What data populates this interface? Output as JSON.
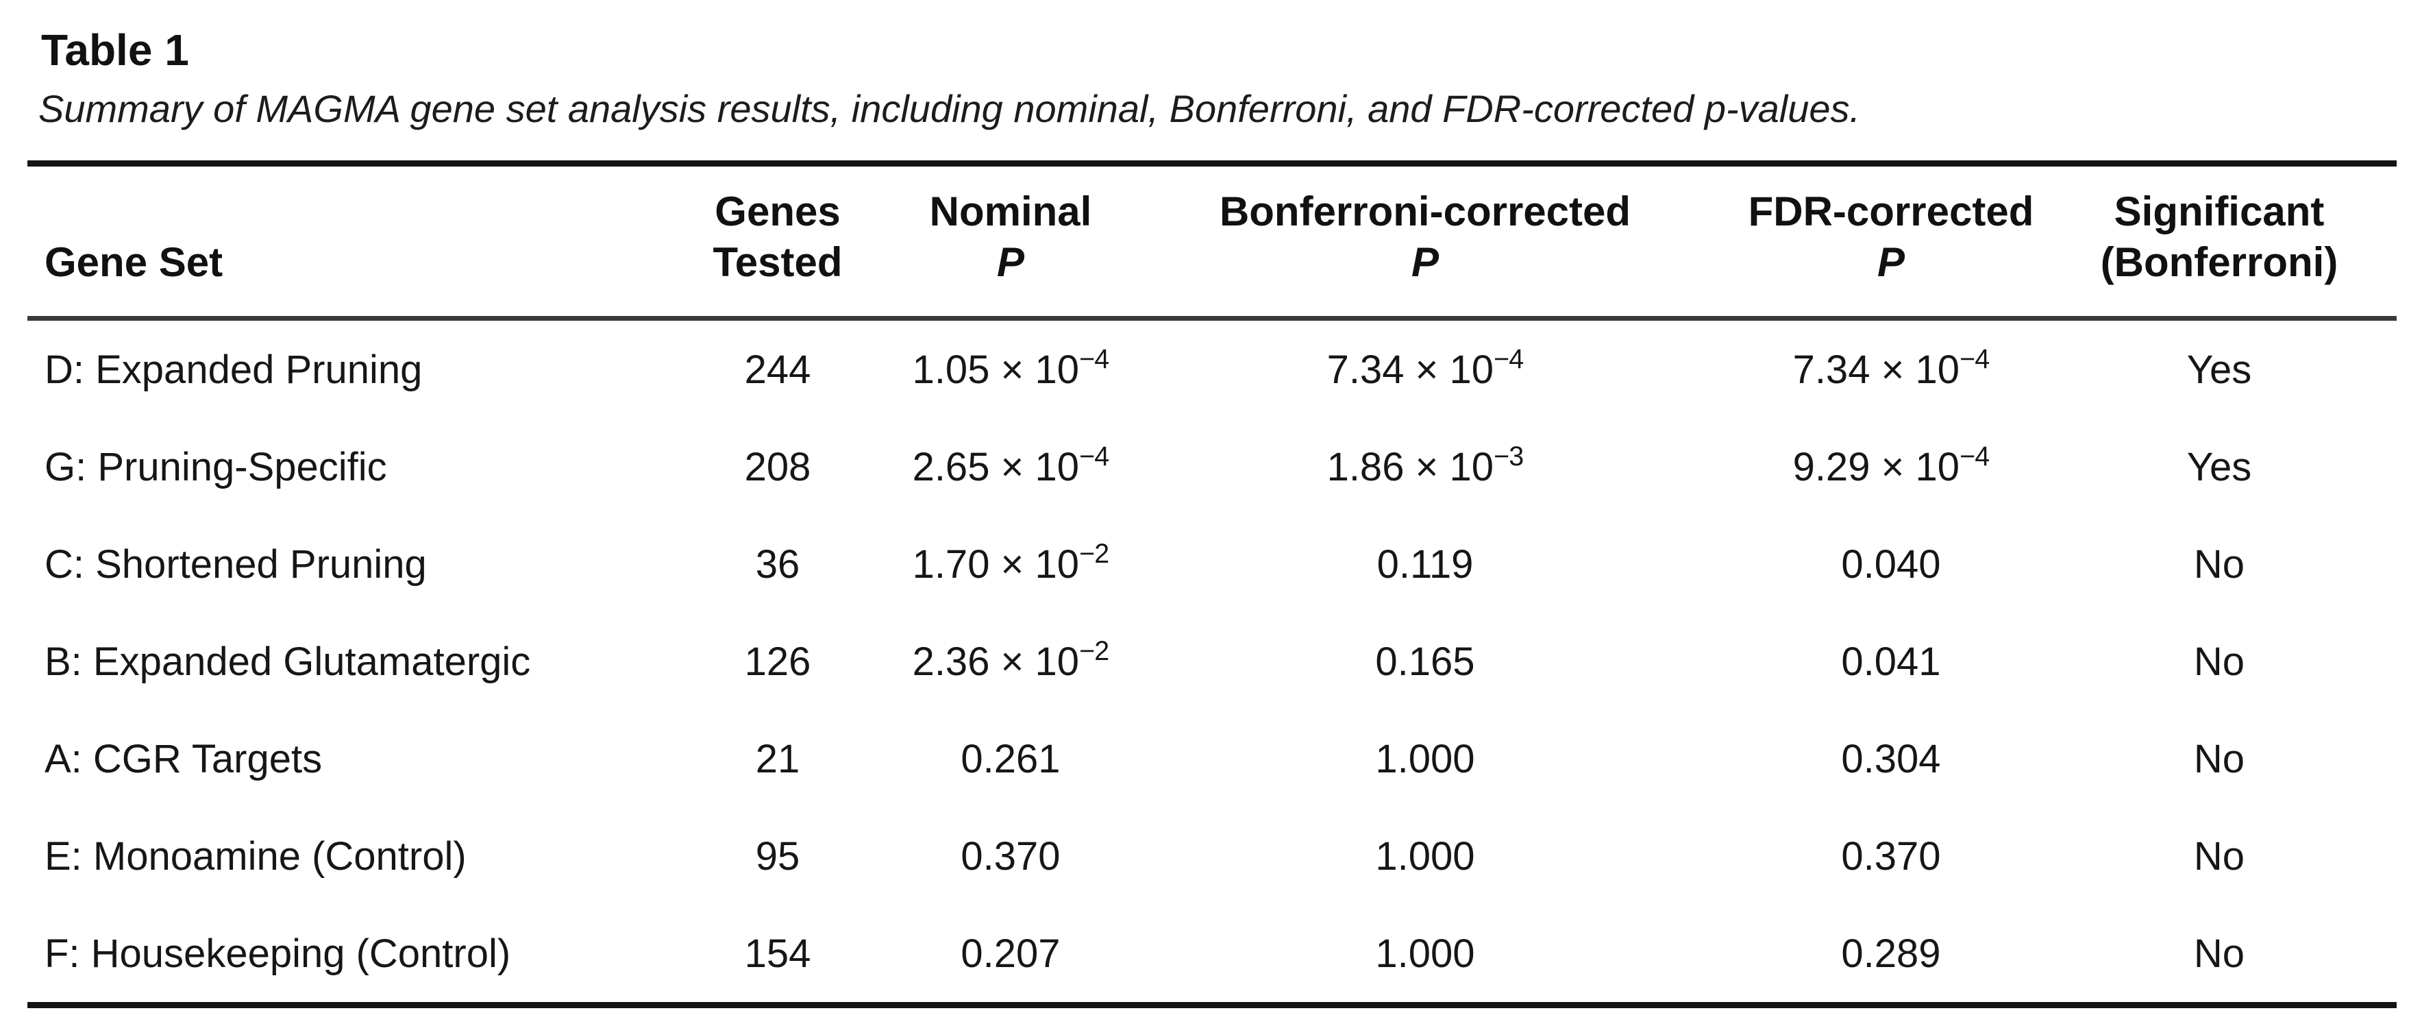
{
  "page": {
    "title": "Table 1",
    "caption": "Summary of MAGMA gene set analysis results, including nominal, Bonferroni, and FDR-corrected p-values."
  },
  "table": {
    "columns": [
      {
        "id": "gene_set",
        "line1": "",
        "line2": "Gene Set"
      },
      {
        "id": "genes_tested",
        "line1": "Genes",
        "line2": "Tested"
      },
      {
        "id": "nominal_p",
        "line1": "Nominal",
        "line2": "P"
      },
      {
        "id": "bonferroni_p",
        "line1": "Bonferroni-corrected",
        "line2": "P"
      },
      {
        "id": "fdr_p",
        "line1": "FDR-corrected",
        "line2": "P"
      },
      {
        "id": "significant",
        "line1": "Significant",
        "line2": "(Bonferroni)"
      }
    ],
    "rows": [
      {
        "gene_set": "D: Expanded Pruning",
        "genes_tested": "244",
        "nominal_p": {
          "mantissa": "1.05",
          "exponent": "−4"
        },
        "bonferroni_p": {
          "mantissa": "7.34",
          "exponent": "−4"
        },
        "fdr_p": {
          "mantissa": "7.34",
          "exponent": "−4"
        },
        "significant": "Yes"
      },
      {
        "gene_set": "G: Pruning-Specific",
        "genes_tested": "208",
        "nominal_p": {
          "mantissa": "2.65",
          "exponent": "−4"
        },
        "bonferroni_p": {
          "mantissa": "1.86",
          "exponent": "−3"
        },
        "fdr_p": {
          "mantissa": "9.29",
          "exponent": "−4"
        },
        "significant": "Yes"
      },
      {
        "gene_set": "C: Shortened Pruning",
        "genes_tested": "36",
        "nominal_p": {
          "mantissa": "1.70",
          "exponent": "−2"
        },
        "bonferroni_p": {
          "value": "0.119"
        },
        "fdr_p": {
          "value": "0.040"
        },
        "significant": "No"
      },
      {
        "gene_set": "B: Expanded Glutamatergic",
        "genes_tested": "126",
        "nominal_p": {
          "mantissa": "2.36",
          "exponent": "−2"
        },
        "bonferroni_p": {
          "value": "0.165"
        },
        "fdr_p": {
          "value": "0.041"
        },
        "significant": "No"
      },
      {
        "gene_set": "A: CGR Targets",
        "genes_tested": "21",
        "nominal_p": {
          "value": "0.261"
        },
        "bonferroni_p": {
          "value": "1.000"
        },
        "fdr_p": {
          "value": "0.304"
        },
        "significant": "No"
      },
      {
        "gene_set": "E: Monoamine (Control)",
        "genes_tested": "95",
        "nominal_p": {
          "value": "0.370"
        },
        "bonferroni_p": {
          "value": "1.000"
        },
        "fdr_p": {
          "value": "0.370"
        },
        "significant": "No"
      },
      {
        "gene_set": "F: Housekeeping (Control)",
        "genes_tested": "154",
        "nominal_p": {
          "value": "0.207"
        },
        "bonferroni_p": {
          "value": "1.000"
        },
        "fdr_p": {
          "value": "0.289"
        },
        "significant": "No"
      }
    ]
  }
}
